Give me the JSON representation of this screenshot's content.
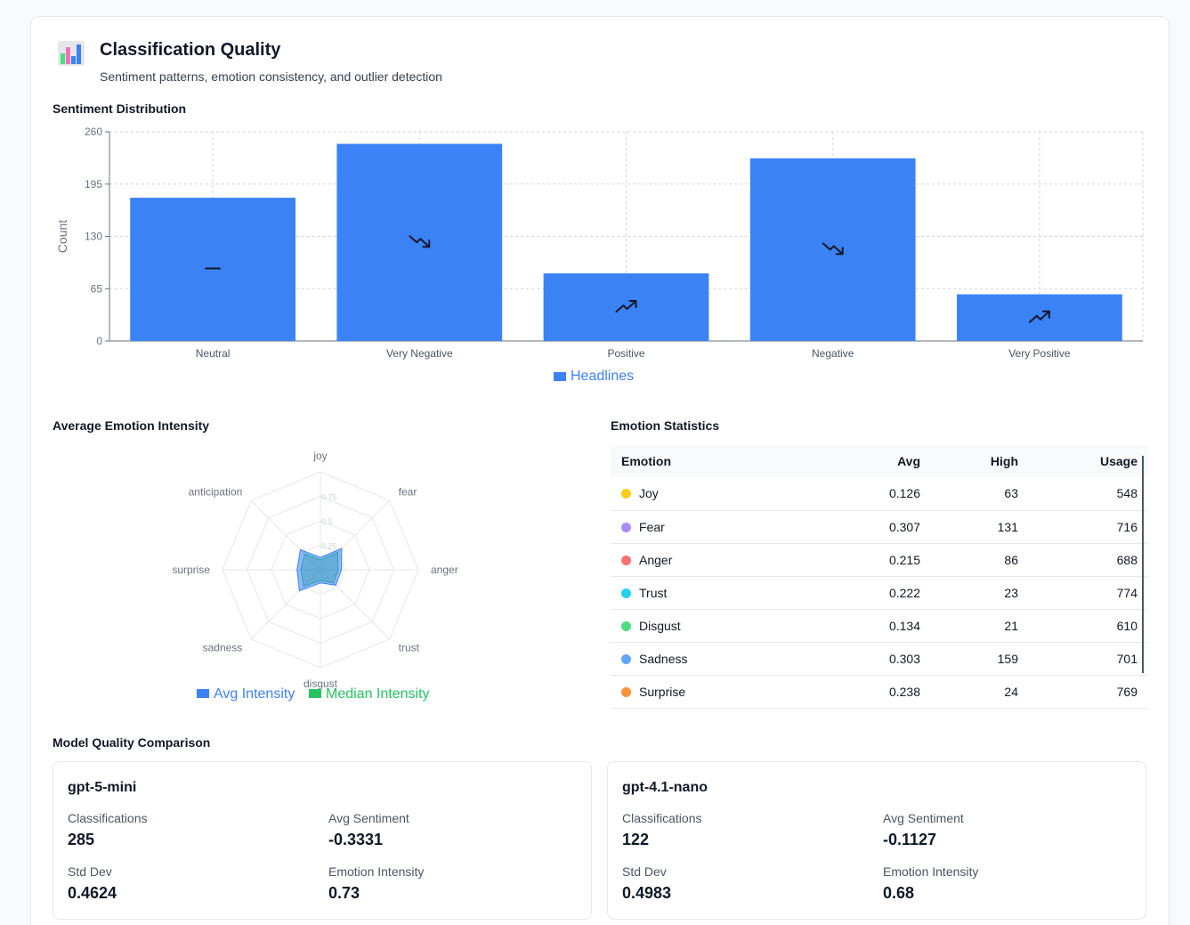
{
  "header": {
    "title": "Classification Quality",
    "subtitle": "Sentiment patterns, emotion consistency, and outlier detection",
    "icon": "bar-chart-icon"
  },
  "sentiment": {
    "section_title": "Sentiment Distribution",
    "chart_data": {
      "type": "bar",
      "categories": [
        "Neutral",
        "Very Negative",
        "Positive",
        "Negative",
        "Very Positive"
      ],
      "series": [
        {
          "name": "Headlines",
          "values": [
            178,
            245,
            84,
            227,
            58
          ],
          "color": "#3b82f6"
        }
      ],
      "bar_icons": [
        "dash-icon",
        "trend-down-icon",
        "trend-up-icon",
        "trend-down-icon",
        "trend-up-icon"
      ],
      "ylabel": "Count",
      "yticks": [
        0,
        65,
        130,
        195,
        260
      ],
      "ylim": [
        0,
        260
      ],
      "grid": true,
      "legend": "bottom-center"
    }
  },
  "emotion_radar": {
    "section_title": "Average Emotion Intensity",
    "chart_data": {
      "type": "radar",
      "axes": [
        "joy",
        "fear",
        "anger",
        "trust",
        "disgust",
        "sadness",
        "surprise",
        "anticipation"
      ],
      "rticks": [
        "0.25",
        "0.5",
        "0.75"
      ],
      "rlim": [
        0,
        1
      ],
      "series": [
        {
          "name": "Avg Intensity",
          "values": [
            0.126,
            0.307,
            0.215,
            0.222,
            0.134,
            0.303,
            0.238,
            0.29
          ],
          "color": "#3b82f6"
        },
        {
          "name": "Median Intensity",
          "values": [
            0.1,
            0.25,
            0.18,
            0.19,
            0.11,
            0.24,
            0.2,
            0.23
          ],
          "color": "#22c55e"
        }
      ],
      "legend": "bottom-center"
    }
  },
  "emotion_stats": {
    "section_title": "Emotion Statistics",
    "columns": [
      "Emotion",
      "Avg",
      "High",
      "Usage"
    ],
    "rows": [
      {
        "emotion": "Joy",
        "color": "#facc15",
        "avg": "0.126",
        "high": "63",
        "usage": "548"
      },
      {
        "emotion": "Fear",
        "color": "#a78bfa",
        "avg": "0.307",
        "high": "131",
        "usage": "716"
      },
      {
        "emotion": "Anger",
        "color": "#f87171",
        "avg": "0.215",
        "high": "86",
        "usage": "688"
      },
      {
        "emotion": "Trust",
        "color": "#22d3ee",
        "avg": "0.222",
        "high": "23",
        "usage": "774"
      },
      {
        "emotion": "Disgust",
        "color": "#4ade80",
        "avg": "0.134",
        "high": "21",
        "usage": "610"
      },
      {
        "emotion": "Sadness",
        "color": "#60a5fa",
        "avg": "0.303",
        "high": "159",
        "usage": "701"
      },
      {
        "emotion": "Surprise",
        "color": "#fb923c",
        "avg": "0.238",
        "high": "24",
        "usage": "769"
      }
    ]
  },
  "model_comparison": {
    "section_title": "Model Quality Comparison",
    "models": [
      {
        "name": "gpt-5-mini",
        "classifications_label": "Classifications",
        "classifications": "285",
        "avg_sentiment_label": "Avg Sentiment",
        "avg_sentiment": "-0.3331",
        "std_dev_label": "Std Dev",
        "std_dev": "0.4624",
        "emotion_intensity_label": "Emotion Intensity",
        "emotion_intensity": "0.73"
      },
      {
        "name": "gpt-4.1-nano",
        "classifications_label": "Classifications",
        "classifications": "122",
        "avg_sentiment_label": "Avg Sentiment",
        "avg_sentiment": "-0.1127",
        "std_dev_label": "Std Dev",
        "std_dev": "0.4983",
        "emotion_intensity_label": "Emotion Intensity",
        "emotion_intensity": "0.68"
      }
    ]
  }
}
